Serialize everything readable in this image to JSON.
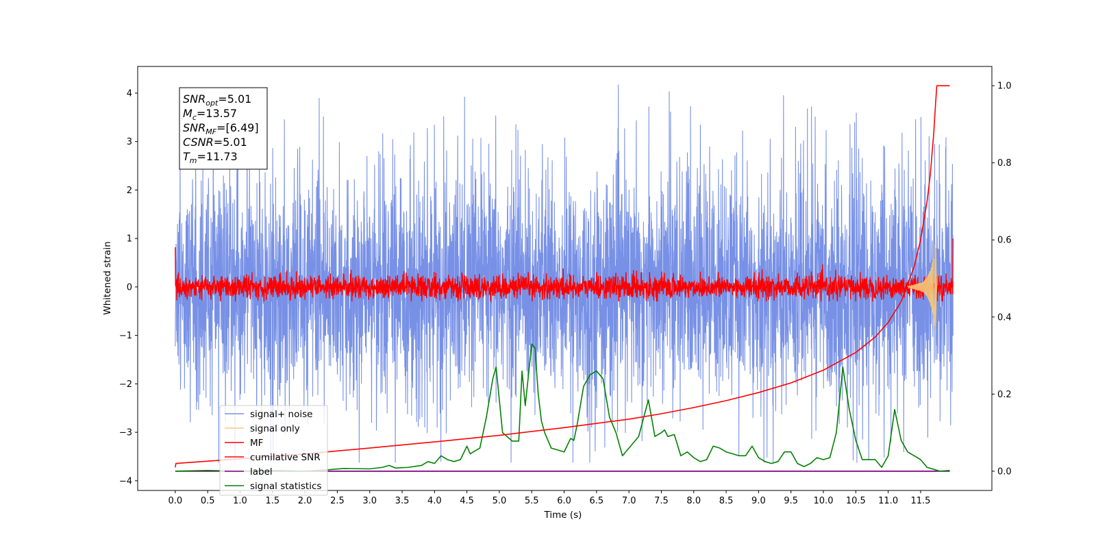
{
  "chart_data": {
    "type": "line",
    "title": "",
    "xlabel": "Time (s)",
    "ylabel": "Whitened strain",
    "ylabel_right": "",
    "xlim": [
      -0.58,
      12.6
    ],
    "ylim": [
      -4.2,
      4.55
    ],
    "ylim_right": [
      -0.05,
      1.05
    ],
    "x_ticks": [
      0.0,
      0.5,
      1.0,
      1.5,
      2.0,
      2.5,
      3.0,
      3.5,
      4.0,
      4.5,
      5.0,
      5.5,
      6.0,
      6.5,
      7.0,
      7.5,
      8.0,
      8.5,
      9.0,
      9.5,
      10.0,
      10.5,
      11.0,
      11.5
    ],
    "x_tick_labels": [
      "0.0",
      "0.5",
      "1.0",
      "1.5",
      "2.0",
      "2.5",
      "3.0",
      "3.5",
      "4.0",
      "4.5",
      "5.0",
      "5.5",
      "6.0",
      "6.5",
      "7.0",
      "7.5",
      "8.0",
      "8.5",
      "9.0",
      "9.5",
      "10.0",
      "10.5",
      "11.0",
      "11.5"
    ],
    "y_ticks": [
      -4,
      -3,
      -2,
      -1,
      0,
      1,
      2,
      3,
      4
    ],
    "y_tick_labels": [
      "−4",
      "−3",
      "−2",
      "−1",
      "0",
      "1",
      "2",
      "3",
      "4"
    ],
    "y_ticks_right": [
      0.0,
      0.2,
      0.4,
      0.6,
      0.8,
      1.0
    ],
    "y_tick_labels_right": [
      "0.0",
      "0.2",
      "0.4",
      "0.6",
      "0.8",
      "1.0"
    ],
    "grid": false,
    "legend_placement": "lower-left",
    "info_box": {
      "lines": [
        {
          "base": "SNR",
          "sub": "opt",
          "value": "=5.01"
        },
        {
          "base": "M",
          "sub": "c",
          "value": "=13.57"
        },
        {
          "base": "SNR",
          "sub": "MF",
          "value": "=[6.49]"
        },
        {
          "base": "CSNR",
          "sub": "",
          "value": "=5.01"
        },
        {
          "base": "T",
          "sub": "m",
          "value": "=11.73"
        }
      ]
    },
    "series": [
      {
        "name": "signal+ noise",
        "axis": "left",
        "color": "#7891e6",
        "envelope": {
          "x_start": 0.0,
          "x_end": 12.0,
          "typical_abs": 1.8,
          "max": 4.17,
          "min": -3.62
        }
      },
      {
        "name": "signal only",
        "axis": "left",
        "color": "#f5c97a",
        "x": [
          11.3,
          11.4,
          11.5,
          11.55,
          11.6,
          11.65,
          11.7,
          11.73,
          11.75
        ],
        "amplitude": [
          0.02,
          0.04,
          0.08,
          0.12,
          0.2,
          0.35,
          0.6,
          1.0,
          0.0
        ]
      },
      {
        "name": "MF",
        "axis": "left",
        "color": "#ff0000",
        "envelope": {
          "x_start": 0.0,
          "x_end": 12.0,
          "typical_abs": 0.28,
          "max": 0.55,
          "min": -0.3,
          "start_value": 0.82,
          "end_value": 1.0
        }
      },
      {
        "name": "cumilative SNR",
        "axis": "right",
        "color": "#ff0000",
        "x": [
          0.0,
          0.01,
          1.0,
          2.0,
          3.0,
          4.0,
          5.0,
          6.0,
          7.0,
          7.5,
          8.0,
          8.5,
          9.0,
          9.5,
          10.0,
          10.5,
          10.8,
          11.0,
          11.2,
          11.4,
          11.5,
          11.6,
          11.65,
          11.7,
          11.73,
          11.75,
          11.95
        ],
        "y": [
          0.01,
          0.02,
          0.032,
          0.045,
          0.06,
          0.076,
          0.093,
          0.113,
          0.135,
          0.149,
          0.165,
          0.183,
          0.204,
          0.229,
          0.262,
          0.308,
          0.348,
          0.386,
          0.44,
          0.53,
          0.6,
          0.7,
          0.77,
          0.87,
          0.95,
          1.0,
          1.0
        ]
      },
      {
        "name": "label",
        "axis": "right",
        "color": "#800080",
        "x": [
          0.0,
          11.95
        ],
        "y": [
          0.0,
          0.0
        ]
      },
      {
        "name": "signal statistics",
        "axis": "right",
        "color": "#008000",
        "x": [
          0.0,
          0.5,
          1.0,
          1.5,
          2.0,
          2.3,
          2.6,
          3.0,
          3.2,
          3.3,
          3.4,
          3.6,
          3.8,
          3.9,
          4.0,
          4.05,
          4.1,
          4.2,
          4.3,
          4.4,
          4.5,
          4.55,
          4.6,
          4.7,
          4.8,
          4.9,
          4.95,
          5.05,
          5.2,
          5.3,
          5.35,
          5.4,
          5.45,
          5.5,
          5.55,
          5.6,
          5.65,
          5.7,
          5.8,
          5.9,
          6.0,
          6.1,
          6.15,
          6.2,
          6.3,
          6.4,
          6.5,
          6.6,
          6.7,
          6.8,
          6.9,
          7.0,
          7.15,
          7.3,
          7.4,
          7.5,
          7.55,
          7.6,
          7.7,
          7.8,
          7.9,
          8.0,
          8.1,
          8.2,
          8.3,
          8.4,
          8.5,
          8.6,
          8.7,
          8.8,
          8.9,
          9.0,
          9.1,
          9.2,
          9.3,
          9.4,
          9.5,
          9.6,
          9.7,
          9.8,
          9.9,
          10.0,
          10.1,
          10.2,
          10.3,
          10.4,
          10.5,
          10.6,
          10.7,
          10.8,
          10.9,
          11.0,
          11.1,
          11.2,
          11.3,
          11.4,
          11.5,
          11.6,
          11.7,
          11.8,
          11.95
        ],
        "y": [
          0.0,
          0.002,
          0.0,
          0.002,
          0.0,
          0.003,
          0.007,
          0.006,
          0.01,
          0.015,
          0.008,
          0.01,
          0.015,
          0.025,
          0.02,
          0.03,
          0.04,
          0.03,
          0.025,
          0.03,
          0.065,
          0.045,
          0.05,
          0.06,
          0.14,
          0.24,
          0.27,
          0.1,
          0.078,
          0.078,
          0.26,
          0.17,
          0.25,
          0.33,
          0.32,
          0.2,
          0.13,
          0.1,
          0.06,
          0.055,
          0.05,
          0.085,
          0.08,
          0.12,
          0.22,
          0.25,
          0.26,
          0.24,
          0.14,
          0.1,
          0.04,
          0.06,
          0.09,
          0.185,
          0.09,
          0.1,
          0.107,
          0.09,
          0.095,
          0.04,
          0.05,
          0.035,
          0.025,
          0.03,
          0.065,
          0.06,
          0.05,
          0.045,
          0.04,
          0.04,
          0.065,
          0.035,
          0.025,
          0.02,
          0.025,
          0.05,
          0.05,
          0.02,
          0.012,
          0.02,
          0.035,
          0.03,
          0.035,
          0.1,
          0.27,
          0.16,
          0.08,
          0.03,
          0.03,
          0.03,
          0.01,
          0.04,
          0.16,
          0.08,
          0.05,
          0.04,
          0.03,
          0.01,
          0.005,
          0.0,
          0.002
        ]
      }
    ]
  }
}
